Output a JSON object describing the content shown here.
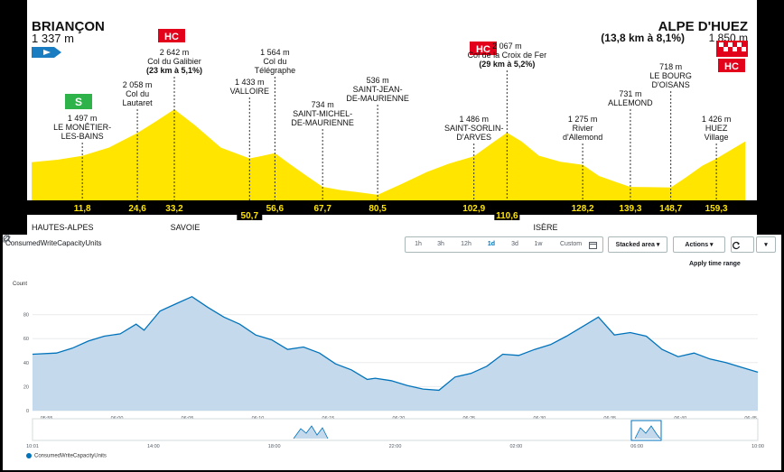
{
  "profile": {
    "start": {
      "name": "BRIANÇON",
      "alt": "1 337 m"
    },
    "finish": {
      "name": "ALPE D'HUEZ",
      "details": "(13,8 km à 8,1%)",
      "alt": "1 850 m"
    },
    "category_hc": "HC",
    "sprint_badge": "S",
    "places": [
      {
        "lines": [
          "1 497 m",
          "LE MONÊTIER-",
          "LES-BAINS"
        ],
        "km": 11.8
      },
      {
        "lines": [
          "2 058 m",
          "Col du",
          "Lautaret"
        ],
        "km": 24.6
      },
      {
        "lines": [
          "2 642 m",
          "Col du Galibier",
          "(23 km à 5,1%)"
        ],
        "km": 33.2
      },
      {
        "lines": [
          "1 433 m",
          "VALLOIRE"
        ],
        "km": 50.7
      },
      {
        "lines": [
          "1 564 m",
          "Col du",
          "Télégraphe"
        ],
        "km": 56.6
      },
      {
        "lines": [
          "734 m",
          "SAINT-MICHEL-",
          "DE-MAURIENNE"
        ],
        "km": 67.7
      },
      {
        "lines": [
          "536 m",
          "SAINT-JEAN-",
          "DE-MAURIENNE"
        ],
        "km": 80.5
      },
      {
        "lines": [
          "1 486 m",
          "SAINT-SORLIN-",
          "D'ARVES"
        ],
        "km": 102.9
      },
      {
        "lines": [
          "2 067 m",
          "Col de la Croix de Fer",
          "(29 km à 5,2%)"
        ],
        "km": 110.6
      },
      {
        "lines": [
          "1 275 m",
          "Rivier",
          "d'Allemond"
        ],
        "km": 128.2
      },
      {
        "lines": [
          "731 m",
          "ALLEMOND"
        ],
        "km": 139.3
      },
      {
        "lines": [
          "718 m",
          "LE BOURG",
          "D'OISANS"
        ],
        "km": 148.7
      },
      {
        "lines": [
          "1 426 m",
          "HUEZ",
          "Village"
        ],
        "km": 159.3
      }
    ],
    "km_labels": [
      "11,8",
      "24,6",
      "33,2",
      "50,7",
      "56,6",
      "67,7",
      "80,5",
      "102,9",
      "110,6",
      "128,2",
      "139,3",
      "148,7",
      "159,3"
    ],
    "regions": [
      "HAUTES-ALPES",
      "SAVOIE",
      "ISÈRE"
    ],
    "elevation_km": [
      0,
      6,
      11.8,
      18,
      24.6,
      29,
      33.2,
      38,
      44,
      50.7,
      53,
      56.6,
      60,
      64,
      67.7,
      72,
      76,
      80.5,
      86,
      92,
      97,
      102.9,
      107,
      110.6,
      114,
      118,
      123,
      128.2,
      132,
      136,
      139.3,
      144,
      148.7,
      152,
      156,
      159.3,
      166
    ],
    "elevation_m": [
      1337,
      1400,
      1497,
      1700,
      2058,
      2350,
      2642,
      2250,
      1700,
      1433,
      1480,
      1564,
      1300,
      1000,
      734,
      650,
      600,
      536,
      800,
      1100,
      1300,
      1486,
      1800,
      2067,
      1850,
      1500,
      1350,
      1275,
      1000,
      850,
      731,
      725,
      718,
      950,
      1250,
      1426,
      1850
    ],
    "colors": {
      "fill": "#ffe500",
      "hc": "#e2001a",
      "sprint": "#2db34a",
      "start_flag": "#1a7cc1"
    }
  },
  "cloudwatch": {
    "metric_title": "ConsumedWriteCapacityUnits",
    "ranges": [
      "1h",
      "3h",
      "12h",
      "1d",
      "3d",
      "1w"
    ],
    "active_range": "1d",
    "custom_label": "Custom",
    "chart_type_label": "Stacked area",
    "actions_label": "Actions",
    "apply_time_range": "Apply time range",
    "y_axis_label": "Count",
    "legend_label": "ConsumedWriteCapacityUnits",
    "colors": {
      "series": "#0073bb",
      "area": "#c4d9ec",
      "active": "#0073bb"
    }
  },
  "chart_data": {
    "type": "area",
    "title": "",
    "ylabel": "Count",
    "ylim": [
      0,
      100
    ],
    "y_ticks": [
      0,
      20,
      40,
      60,
      80
    ],
    "x_ticks": [
      "05:55",
      "06:00",
      "06:05",
      "06:10",
      "06:15",
      "06:20",
      "06:25",
      "06:30",
      "06:35",
      "06:40",
      "06:45"
    ],
    "x_minutes": [
      0,
      3,
      5,
      7,
      9,
      11,
      13,
      14,
      16,
      18,
      20,
      22,
      24,
      26,
      28,
      30,
      32,
      34,
      36,
      38,
      40,
      42,
      43,
      45,
      47,
      49,
      51,
      53,
      55,
      57,
      59,
      61,
      63,
      65,
      67,
      69,
      71,
      73,
      75,
      77,
      79,
      81,
      83,
      85,
      87,
      89,
      91
    ],
    "values": [
      47,
      48,
      52,
      58,
      62,
      64,
      72,
      67,
      83,
      89,
      95,
      86,
      78,
      72,
      63,
      59,
      51,
      53,
      48,
      39,
      34,
      26,
      27,
      25,
      21,
      18,
      17,
      28,
      31,
      37,
      47,
      46,
      51,
      55,
      62,
      70,
      78,
      63,
      65,
      62,
      51,
      45,
      48,
      43,
      40,
      36,
      32
    ],
    "x_tick_minutes": [
      2,
      12,
      22,
      32,
      42,
      52,
      62,
      72,
      82,
      92,
      102
    ],
    "navigator": {
      "x_ticks": [
        "10:01",
        "14:00",
        "18:00",
        "22:00",
        "02:00",
        "06:00",
        "10:00"
      ]
    }
  }
}
